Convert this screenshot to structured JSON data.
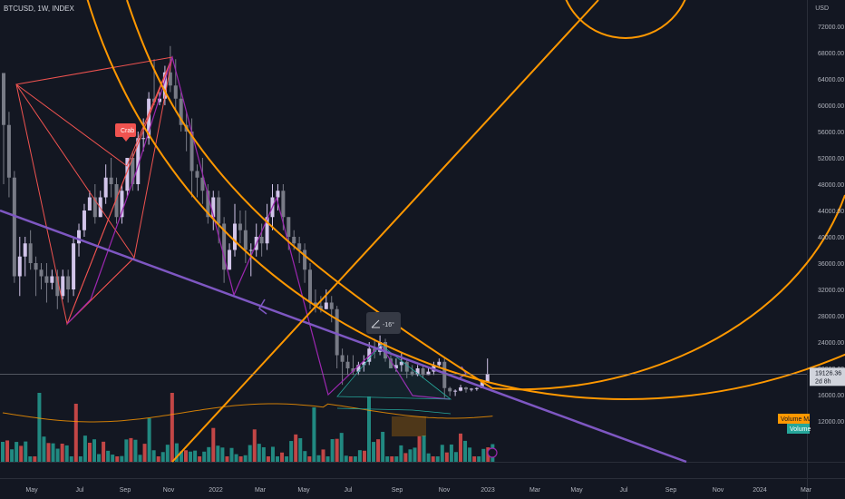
{
  "header": {
    "symbol_line": "BTCUSD, 1W, INDEX"
  },
  "price_scale": {
    "currency": "USD",
    "ticks": [
      "72000.00",
      "68000.00",
      "64000.00",
      "60000.00",
      "56000.00",
      "52000.00",
      "48000.00",
      "44000.00",
      "40000.00",
      "36000.00",
      "32000.00",
      "28000.00",
      "24000.00",
      "20000.00",
      "16000.00",
      "12000.00"
    ],
    "last_price": "19126.36",
    "countdown": "2d 8h"
  },
  "time_axis": {
    "ticks": [
      "May",
      "Jul",
      "Sep",
      "Nov",
      "2022",
      "Mar",
      "May",
      "Jul",
      "Sep",
      "Nov",
      "2023",
      "Mar",
      "May",
      "Jul",
      "Sep",
      "Nov",
      "2024",
      "Mar"
    ]
  },
  "annotations": {
    "crab_label": "Crab",
    "angle_value": "-16°",
    "volume_ma_label": "Volume MA",
    "volume_label": "Volume"
  },
  "colors": {
    "background": "#131722",
    "up_candle": "#d1c4e9",
    "down_candle": "#787b86",
    "pattern_red": "#f05350",
    "pattern_purple": "#9c27b0",
    "trendline_purple": "#7e57c2",
    "fib_orange": "#ff9800",
    "volume_up": "#26a69a",
    "volume_down": "#ef5350",
    "volume_ma": "#ff9800",
    "crab_badge": "#f05350",
    "last_price_line": "#787b86"
  },
  "chart_data": {
    "type": "candlestick",
    "interval": "1W",
    "y_scale": "price (USD)",
    "ylim": [
      10000,
      76000
    ],
    "last_close": 19126.36,
    "weekly_ohlc": [
      [
        64900,
        64900,
        48000,
        57000
      ],
      [
        57000,
        59000,
        46000,
        49000
      ],
      [
        49000,
        50000,
        33000,
        34000
      ],
      [
        34000,
        40000,
        31000,
        37000
      ],
      [
        37000,
        40000,
        34000,
        39000
      ],
      [
        39000,
        41000,
        35000,
        36000
      ],
      [
        36000,
        37000,
        31000,
        35000
      ],
      [
        35000,
        36000,
        32000,
        34000
      ],
      [
        34000,
        36000,
        30000,
        33000
      ],
      [
        33000,
        35000,
        32000,
        34000
      ],
      [
        34000,
        35000,
        29000,
        31000
      ],
      [
        31000,
        35000,
        30500,
        34000
      ],
      [
        34000,
        35000,
        30000,
        32000
      ],
      [
        32000,
        40000,
        31000,
        39000
      ],
      [
        39000,
        42000,
        37000,
        41000
      ],
      [
        41000,
        45000,
        40000,
        44000
      ],
      [
        44000,
        47000,
        44000,
        46000
      ],
      [
        46000,
        48000,
        42000,
        43000
      ],
      [
        43000,
        47000,
        43000,
        46000
      ],
      [
        46000,
        51000,
        45000,
        49000
      ],
      [
        49000,
        52000,
        46000,
        48000
      ],
      [
        48000,
        49000,
        42000,
        43000
      ],
      [
        43000,
        48000,
        42000,
        47000
      ],
      [
        47000,
        52000,
        46000,
        52000
      ],
      [
        52000,
        53000,
        47000,
        48000
      ],
      [
        48000,
        56000,
        47000,
        55000
      ],
      [
        55000,
        58000,
        53000,
        55000
      ],
      [
        55000,
        62000,
        54000,
        61000
      ],
      [
        61000,
        67000,
        60000,
        60500
      ],
      [
        60500,
        62000,
        60000,
        61000
      ],
      [
        61000,
        66000,
        60000,
        65000
      ],
      [
        65000,
        69000,
        62000,
        63000
      ],
      [
        63000,
        67000,
        59000,
        61000
      ],
      [
        61000,
        62000,
        56000,
        57000
      ],
      [
        57000,
        59000,
        53000,
        56000
      ],
      [
        56000,
        58000,
        46000,
        50000
      ],
      [
        50000,
        51000,
        46000,
        49000
      ],
      [
        49000,
        52000,
        45000,
        47000
      ],
      [
        47000,
        48000,
        42000,
        43000
      ],
      [
        43000,
        47000,
        41000,
        46000
      ],
      [
        46000,
        47000,
        39000,
        42000
      ],
      [
        42000,
        43000,
        33000,
        35000
      ],
      [
        35000,
        39000,
        35000,
        38000
      ],
      [
        38000,
        45000,
        37000,
        42000
      ],
      [
        42000,
        44000,
        39000,
        41000
      ],
      [
        41000,
        44000,
        36000,
        38000
      ],
      [
        38000,
        39000,
        34000,
        38000
      ],
      [
        38000,
        42000,
        37000,
        40000
      ],
      [
        40000,
        42000,
        37000,
        39000
      ],
      [
        39000,
        45000,
        38000,
        43000
      ],
      [
        43000,
        48000,
        41000,
        46000
      ],
      [
        46000,
        48000,
        44000,
        47000
      ],
      [
        47000,
        48000,
        41000,
        43000
      ],
      [
        43000,
        43000,
        38000,
        40000
      ],
      [
        40000,
        41000,
        38000,
        39000
      ],
      [
        39000,
        40000,
        36000,
        38000
      ],
      [
        38000,
        39000,
        33000,
        35000
      ],
      [
        35000,
        36000,
        29000,
        30000
      ],
      [
        30000,
        32000,
        28500,
        29500
      ],
      [
        29500,
        31000,
        28500,
        29000
      ],
      [
        29000,
        32000,
        29000,
        30000
      ],
      [
        30000,
        31000,
        27000,
        29000
      ],
      [
        29000,
        29500,
        20000,
        22000
      ],
      [
        22000,
        23000,
        17500,
        21000
      ],
      [
        21000,
        22000,
        19000,
        20000
      ],
      [
        20000,
        22000,
        19000,
        19500
      ],
      [
        19500,
        21000,
        19000,
        20500
      ],
      [
        20500,
        22000,
        19500,
        21000
      ],
      [
        21000,
        24000,
        20500,
        23000
      ],
      [
        23000,
        24500,
        21500,
        22500
      ],
      [
        22500,
        25000,
        22000,
        24000
      ],
      [
        24000,
        24500,
        21000,
        21500
      ],
      [
        21500,
        22000,
        20000,
        20000
      ],
      [
        20000,
        21500,
        19500,
        20500
      ],
      [
        20500,
        22500,
        19500,
        21000
      ],
      [
        21000,
        21500,
        18500,
        19500
      ],
      [
        19500,
        20500,
        18800,
        19000
      ],
      [
        19000,
        20500,
        18800,
        20000
      ],
      [
        20000,
        20500,
        18500,
        19000
      ],
      [
        19000,
        20000,
        19000,
        19500
      ],
      [
        19500,
        21000,
        19000,
        20500
      ],
      [
        20500,
        21500,
        20000,
        21000
      ],
      [
        21000,
        21500,
        15500,
        17000
      ],
      [
        17000,
        17200,
        15800,
        16500
      ],
      [
        16500,
        16800,
        15800,
        16600
      ],
      [
        16600,
        17500,
        16500,
        17100
      ],
      [
        17100,
        17200,
        16300,
        16800
      ],
      [
        16800,
        17000,
        16500,
        16900
      ],
      [
        16900,
        17100,
        16600,
        17000
      ],
      [
        17000,
        18000,
        17000,
        17900
      ],
      [
        17900,
        21500,
        17800,
        19126
      ]
    ]
  }
}
